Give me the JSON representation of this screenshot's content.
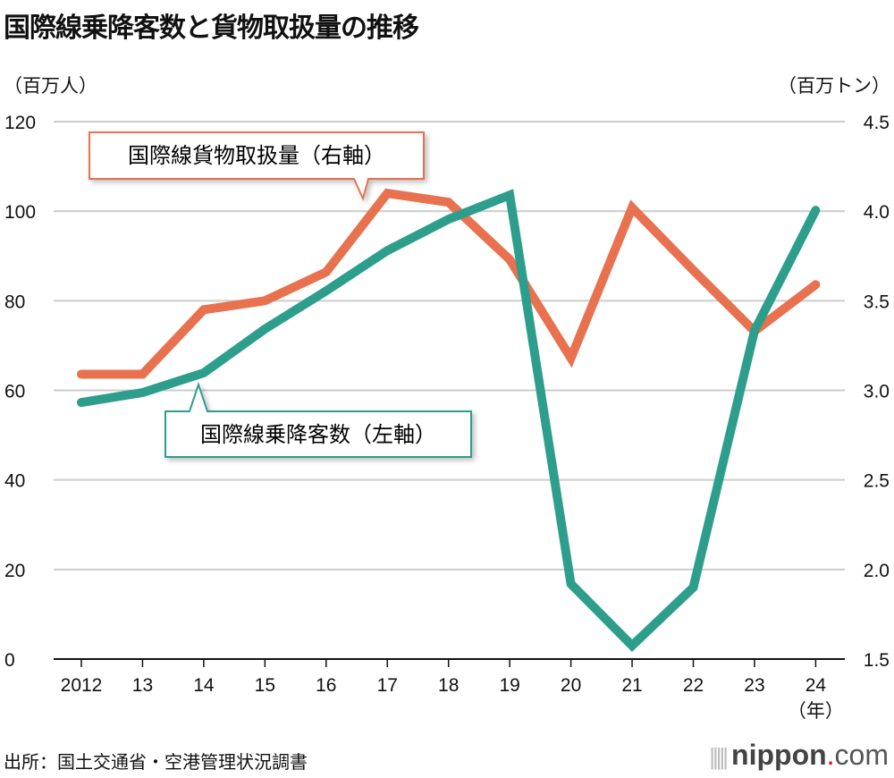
{
  "title": "国際線乗降客数と貨物取扱量の推移",
  "unit_left": "（百万人）",
  "unit_right": "（百万トン）",
  "source": "出所：国土交通省・空港管理状況調書",
  "logo": {
    "bars": "|||||",
    "main": "nippon",
    "dot": ".",
    "suffix": "com"
  },
  "colors": {
    "passengers": "#2e9e8c",
    "cargo": "#e8714f",
    "grid": "#cccccc"
  },
  "chart_data": {
    "type": "line",
    "title": "国際線乗降客数と貨物取扱量の推移",
    "x": [
      "2012",
      "13",
      "14",
      "15",
      "16",
      "17",
      "18",
      "19",
      "20",
      "21",
      "22",
      "23",
      "24"
    ],
    "xlabel_suffix": "（年）",
    "y_left": {
      "label": "（百万人）",
      "range": [
        0,
        120
      ],
      "ticks": [
        "0",
        "20",
        "40",
        "60",
        "80",
        "100",
        "120"
      ]
    },
    "y_right": {
      "label": "（百万トン）",
      "range": [
        1.5,
        4.5
      ],
      "ticks": [
        "1.5",
        "2.0",
        "2.5",
        "3.0",
        "3.5",
        "4.0",
        "4.5"
      ]
    },
    "grid": true,
    "series": [
      {
        "name": "国際線乗降客数（左軸）",
        "axis": "left",
        "color": "#2e9e8c",
        "values": [
          57.3,
          59.5,
          63.9,
          73.7,
          82.2,
          91.2,
          98.2,
          103.6,
          16.8,
          3.0,
          16.0,
          73.3,
          100.2
        ]
      },
      {
        "name": "国際線貨物取扱量（右軸）",
        "axis": "right",
        "color": "#e8714f",
        "values": [
          3.09,
          3.09,
          3.45,
          3.5,
          3.66,
          4.1,
          4.05,
          3.73,
          3.18,
          4.02,
          3.67,
          3.33,
          3.59
        ]
      }
    ]
  }
}
